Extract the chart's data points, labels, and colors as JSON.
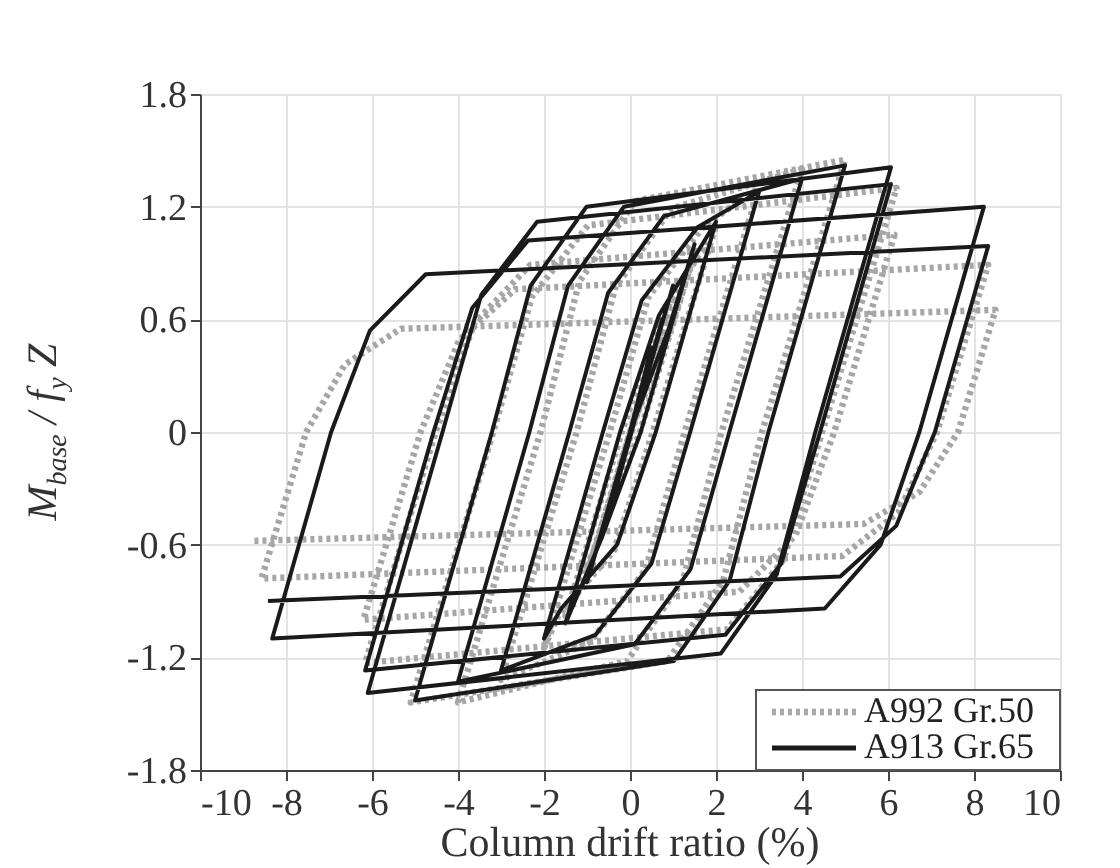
{
  "chart_data": {
    "type": "line",
    "xlabel": "Column drift ratio (%)",
    "ylabel": "M$_{base}$ / f$_{y}$ Z",
    "xlim": [
      -10,
      10
    ],
    "xticks": [
      -10,
      -8,
      -6,
      -4,
      -2,
      0,
      2,
      4,
      6,
      8,
      10
    ],
    "ylim": [
      -1.8,
      1.8
    ],
    "yticks": [
      -1.8,
      -1.2,
      -0.6,
      0,
      0.6,
      1.2,
      1.8
    ],
    "grid": true,
    "legend": "bottom right",
    "marker": "none",
    "series": [
      {
        "name": "A992 Gr.50",
        "color": "#a6a6a6",
        "line_style": "dotted",
        "x": [
          0,
          0.5,
          -0.5,
          0.75,
          -0.75,
          1,
          0.04,
          -1,
          0,
          0.9,
          1.5,
          0.23,
          -0.67,
          -1.5,
          -0.19,
          0.71,
          2,
          0.53,
          -0.37,
          -1.67,
          -2,
          -0.47,
          0.43,
          1.73,
          3,
          1.27,
          0.37,
          -0.93,
          -3,
          -1.24,
          -0.34,
          0.96,
          4,
          2.13,
          1.23,
          -0.07,
          -4,
          -2.08,
          -1.18,
          0.12,
          5,
          3.07,
          2.17,
          0.87,
          -5.1,
          -3.18,
          -2.28,
          -0.98,
          6.2,
          4.47,
          3.57,
          2.27,
          -6.16,
          -4.52,
          -3.62,
          -2.32,
          6.15,
          4.75,
          3.85,
          2.55,
          -6.2,
          -4.87,
          -3.97,
          -2.67,
          8.33,
          7.14,
          6.24,
          4.94,
          -8.57,
          -7.53,
          -6.63,
          -5.33,
          8.5,
          7.63,
          6.73,
          5.43,
          -8.8
        ],
        "values": [
          0,
          0.4,
          -0.4,
          0.55,
          -0.57,
          0.72,
          0,
          -0.75,
          0,
          0.52,
          0.95,
          0,
          -0.54,
          -0.98,
          0,
          0.6,
          1.1,
          0,
          -0.63,
          -0.98,
          -1.15,
          0,
          0.72,
          1.1,
          1.3,
          0,
          -0.73,
          -1.12,
          -1.32,
          0,
          0.77,
          1.19,
          1.4,
          0,
          -0.79,
          -1.22,
          -1.44,
          0,
          0.8,
          1.23,
          1.45,
          0,
          -0.79,
          -1.22,
          -1.44,
          0,
          0.72,
          1.1,
          1.3,
          0,
          -0.68,
          -1.05,
          -1.23,
          0,
          0.58,
          0.89,
          1.05,
          0,
          -0.55,
          -0.85,
          -1.0,
          0,
          0.49,
          0.76,
          0.89,
          0,
          -0.43,
          -0.66,
          -0.78,
          0,
          0.36,
          0.55,
          0.65,
          0,
          -0.32,
          -0.49,
          -0.58
        ]
      },
      {
        "name": "A913 Gr.65",
        "color": "#1a1a1a",
        "line_style": "solid",
        "x": [
          0,
          0.5,
          -0.5,
          0.75,
          -0.75,
          1,
          0.03,
          -1,
          0,
          0.9,
          1.5,
          0.25,
          -0.65,
          -1.5,
          -0.23,
          0.67,
          2,
          0.6,
          -0.3,
          -1.6,
          -2,
          -0.63,
          0.27,
          1.57,
          3,
          1.4,
          0.5,
          -0.8,
          -3,
          -1.41,
          -0.51,
          0.79,
          4,
          2.31,
          1.41,
          0.11,
          -4,
          -2.34,
          -1.44,
          -0.14,
          5,
          3.22,
          2.32,
          1.02,
          -5,
          -3.21,
          -2.31,
          -1.01,
          6.07,
          4.31,
          3.41,
          2.11,
          -6.1,
          -4.36,
          -3.46,
          -2.16,
          6.07,
          4.42,
          3.52,
          2.22,
          -6.16,
          -4.57,
          -3.67,
          -2.37,
          8.23,
          6.73,
          5.83,
          4.53,
          -8.32,
          -6.95,
          -6.05,
          -4.75,
          8.33,
          7.09,
          6.19,
          4.89,
          -8.42
        ],
        "values": [
          0,
          0.45,
          -0.45,
          0.6,
          -0.6,
          0.78,
          0,
          -0.8,
          0,
          0.55,
          1.0,
          0,
          -0.56,
          -1.02,
          0,
          0.62,
          1.12,
          0,
          -0.6,
          -0.94,
          -1.1,
          0,
          0.7,
          1.09,
          1.28,
          0,
          -0.7,
          -1.08,
          -1.27,
          0,
          0.74,
          1.15,
          1.35,
          0,
          -0.73,
          -1.13,
          -1.33,
          0,
          0.78,
          1.2,
          1.42,
          0,
          -0.79,
          -1.22,
          -1.43,
          0,
          0.78,
          1.2,
          1.41,
          0,
          -0.76,
          -1.18,
          -1.39,
          0,
          0.73,
          1.12,
          1.32,
          0,
          -0.7,
          -1.08,
          -1.27,
          0,
          0.66,
          1.02,
          1.2,
          0,
          -0.6,
          -0.94,
          -1.1,
          0,
          0.54,
          0.84,
          0.99,
          0,
          -0.5,
          -0.77,
          -0.9
        ]
      }
    ]
  }
}
